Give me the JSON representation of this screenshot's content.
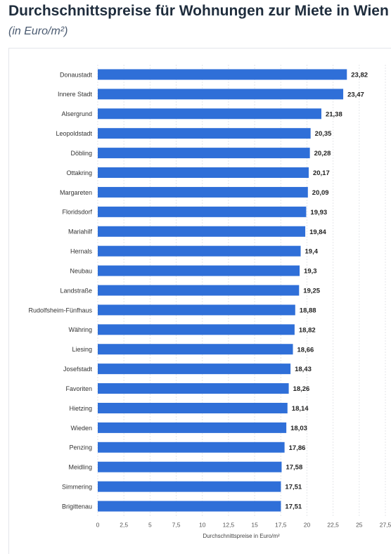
{
  "chart_data": {
    "type": "hbar",
    "title": "Durchschnittspreise für Wohnungen zur Miete in Wien",
    "subtitle": "(in Euro/m²)",
    "x_label": "Durchschnittspreise in Euro/m²",
    "categories": [
      "Donaustadt",
      "Innere Stadt",
      "Alsergrund",
      "Leopoldstadt",
      "Döbling",
      "Ottakring",
      "Margareten",
      "Floridsdorf",
      "Mariahilf",
      "Hernals",
      "Neubau",
      "Landstraße",
      "Rudolfsheim-Fünfhaus",
      "Währing",
      "Liesing",
      "Josefstadt",
      "Favoriten",
      "Hietzing",
      "Wieden",
      "Penzing",
      "Meidling",
      "Simmering",
      "Brigittenau"
    ],
    "values": [
      23.82,
      23.47,
      21.38,
      20.35,
      20.28,
      20.17,
      20.09,
      19.93,
      19.84,
      19.4,
      19.3,
      19.25,
      18.88,
      18.82,
      18.66,
      18.43,
      18.26,
      18.14,
      18.03,
      17.86,
      17.58,
      17.51,
      17.51
    ],
    "value_labels": [
      "23,82",
      "23,47",
      "21,38",
      "20,35",
      "20,28",
      "20,17",
      "20,09",
      "19,93",
      "19,84",
      "19,4",
      "19,3",
      "19,25",
      "18,88",
      "18,82",
      "18,66",
      "18,43",
      "18,26",
      "18,14",
      "18,03",
      "17,86",
      "17,58",
      "17,51",
      "17,51"
    ],
    "color": "#2f6fd8",
    "xlim": [
      0,
      27.5
    ],
    "xticks": [
      0,
      {
        "value": 2.5,
        "label": "2,5"
      },
      5,
      {
        "value": 7.5,
        "label": "7,5"
      },
      10,
      {
        "value": 12.5,
        "label": "12,5"
      },
      15,
      {
        "value": 17.5,
        "label": "17,5"
      },
      20,
      {
        "value": 22.5,
        "label": "22,5"
      },
      25,
      {
        "value": 27.5,
        "label": "27,5"
      }
    ],
    "grid": true
  }
}
